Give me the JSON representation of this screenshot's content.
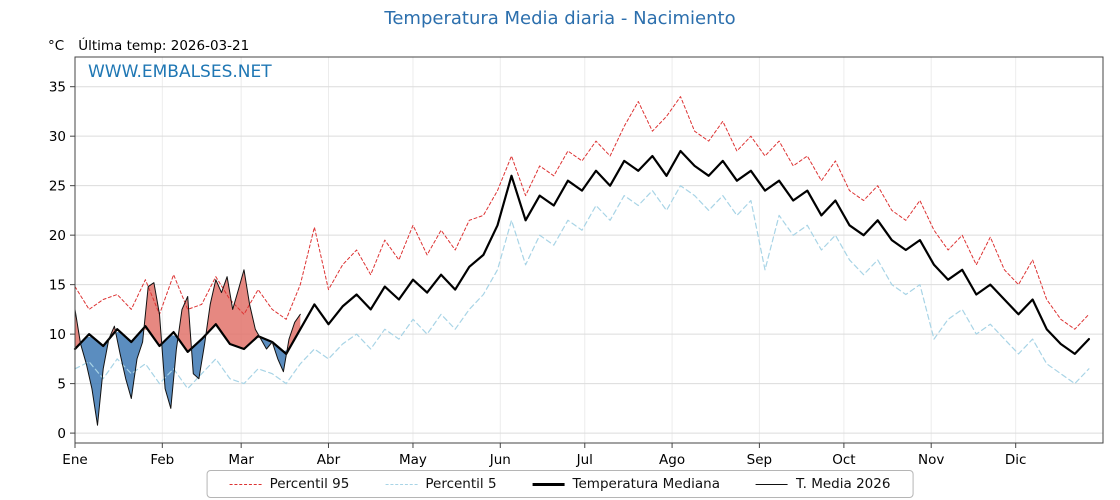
{
  "page": {
    "title": "Temperatura Media diaria - Nacimiento"
  },
  "header": {
    "unit_label": "°C",
    "last_temp_label": "Última temp: 2026-03-21"
  },
  "watermark": "WWW.EMBALSES.NET",
  "chart_data": {
    "type": "line",
    "title": "Temperatura Media diaria - Nacimiento",
    "ylabel": "°C",
    "ylim": [
      -1,
      38
    ],
    "yticks": [
      0,
      5,
      10,
      15,
      20,
      25,
      30,
      35
    ],
    "grid": true,
    "legend_position": "bottom",
    "days_in_year": 365,
    "month_labels": [
      "Ene",
      "Feb",
      "Mar",
      "Abr",
      "May",
      "Jun",
      "Jul",
      "Ago",
      "Sep",
      "Oct",
      "Nov",
      "Dic"
    ],
    "month_start_days": [
      0,
      31,
      59,
      90,
      120,
      151,
      181,
      212,
      243,
      273,
      304,
      334
    ],
    "series": [
      {
        "name": "Percentil 95",
        "style": "dashed",
        "color": "#dd3333",
        "width": 1,
        "x_start": 0,
        "x_step": 5,
        "values": [
          14.8,
          12.5,
          13.5,
          14.0,
          12.5,
          15.5,
          12.0,
          16.0,
          12.5,
          13.0,
          15.8,
          13.5,
          12.0,
          14.5,
          12.5,
          11.5,
          15.0,
          20.8,
          14.5,
          17.0,
          18.5,
          16.0,
          19.5,
          17.5,
          21.0,
          18.0,
          20.5,
          18.5,
          21.5,
          22.0,
          24.5,
          28.0,
          24.0,
          27.0,
          26.0,
          28.5,
          27.5,
          29.5,
          28.0,
          31.0,
          33.5,
          30.5,
          32.0,
          34.0,
          30.5,
          29.5,
          31.5,
          28.5,
          30.0,
          28.0,
          29.5,
          27.0,
          28.0,
          25.5,
          27.5,
          24.5,
          23.5,
          25.0,
          22.5,
          21.5,
          23.5,
          20.5,
          18.5,
          20.0,
          17.0,
          19.8,
          16.5,
          15.0,
          17.5,
          13.5,
          11.5,
          10.5,
          12.0
        ]
      },
      {
        "name": "Percentil 5",
        "style": "dashed",
        "color": "#a8d4e6",
        "width": 1.2,
        "x_start": 0,
        "x_step": 5,
        "values": [
          6.5,
          7.2,
          5.5,
          7.5,
          6.0,
          7.0,
          5.0,
          6.5,
          4.5,
          6.0,
          7.5,
          5.5,
          5.0,
          6.5,
          6.0,
          5.0,
          7.0,
          8.5,
          7.5,
          9.0,
          10.0,
          8.5,
          10.5,
          9.5,
          11.5,
          10.0,
          12.0,
          10.5,
          12.5,
          14.0,
          16.5,
          21.5,
          17.0,
          20.0,
          19.0,
          21.5,
          20.5,
          23.0,
          21.5,
          24.0,
          23.0,
          24.5,
          22.5,
          25.0,
          24.0,
          22.5,
          24.0,
          22.0,
          23.5,
          16.5,
          22.0,
          20.0,
          21.0,
          18.5,
          20.0,
          17.5,
          16.0,
          17.5,
          15.0,
          14.0,
          15.0,
          9.5,
          11.5,
          12.5,
          10.0,
          11.0,
          9.5,
          8.0,
          9.5,
          7.0,
          6.0,
          5.0,
          6.5
        ]
      },
      {
        "name": "Temperatura Mediana",
        "style": "solid",
        "color": "#000000",
        "width": 2.2,
        "x_start": 0,
        "x_step": 5,
        "values": [
          8.5,
          10.0,
          8.8,
          10.5,
          9.2,
          10.8,
          8.8,
          10.2,
          8.2,
          9.5,
          11.0,
          9.0,
          8.5,
          9.8,
          9.2,
          8.0,
          10.5,
          13.0,
          11.0,
          12.8,
          14.0,
          12.5,
          14.8,
          13.5,
          15.5,
          14.2,
          16.0,
          14.5,
          16.8,
          18.0,
          21.0,
          26.0,
          21.5,
          24.0,
          23.0,
          25.5,
          24.5,
          26.5,
          25.0,
          27.5,
          26.5,
          28.0,
          26.0,
          28.5,
          27.0,
          26.0,
          27.5,
          25.5,
          26.5,
          24.5,
          25.5,
          23.5,
          24.5,
          22.0,
          23.5,
          21.0,
          20.0,
          21.5,
          19.5,
          18.5,
          19.5,
          17.0,
          15.5,
          16.5,
          14.0,
          15.0,
          13.5,
          12.0,
          13.5,
          10.5,
          9.0,
          8.0,
          9.5
        ]
      },
      {
        "name": "T. Media 2026",
        "style": "solid",
        "color": "#111111",
        "width": 1,
        "x_start": 0,
        "x_step": 2,
        "values": [
          12.5,
          9.0,
          7.0,
          4.5,
          0.8,
          6.5,
          9.5,
          10.8,
          8.0,
          5.5,
          3.5,
          7.5,
          9.2,
          14.8,
          15.2,
          12.0,
          4.5,
          2.5,
          8.5,
          12.5,
          13.8,
          6.0,
          5.5,
          9.0,
          13.0,
          15.5,
          14.2,
          15.8,
          12.5,
          14.5,
          16.5,
          13.0,
          10.5,
          9.5,
          8.5,
          9.2,
          7.5,
          6.2,
          9.5,
          11.2,
          12.0
        ]
      }
    ],
    "fill_between": {
      "series_a": "T. Media 2026",
      "series_b": "Temperatura Mediana",
      "below_color": "#3e79b4",
      "above_color": "#e2736b",
      "opacity": 0.85
    }
  }
}
